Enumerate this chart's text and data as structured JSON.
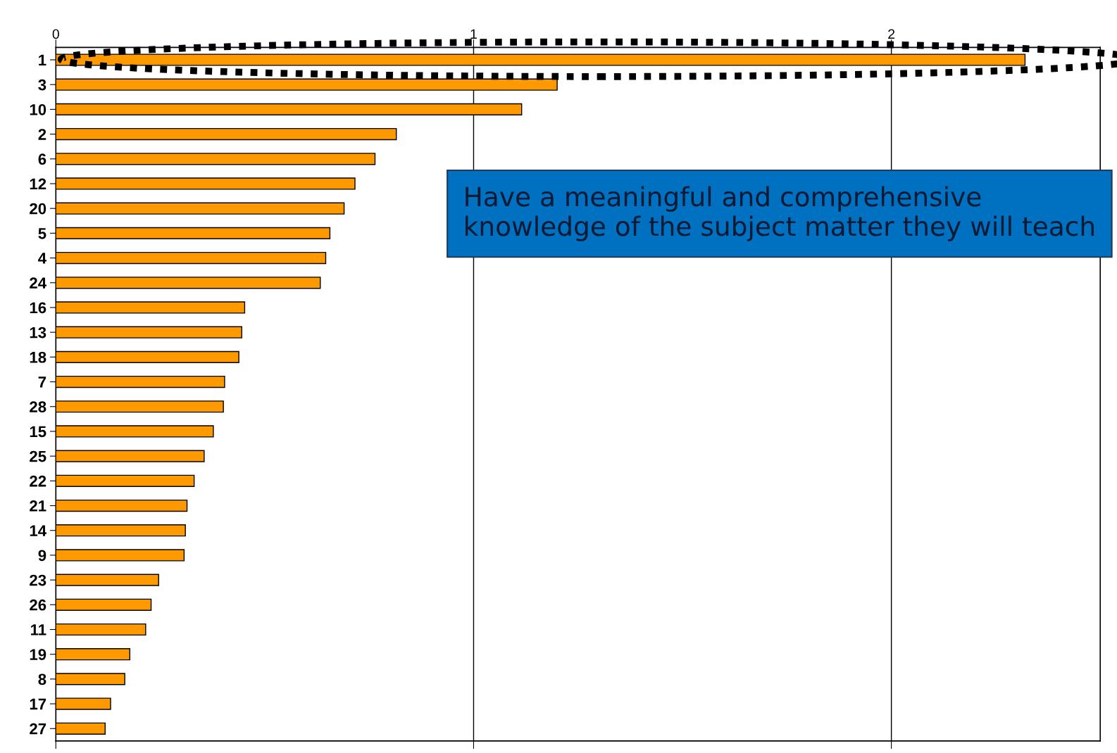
{
  "chart_data": {
    "type": "bar",
    "orientation": "horizontal",
    "categories": [
      "1",
      "3",
      "10",
      "2",
      "6",
      "12",
      "20",
      "5",
      "4",
      "24",
      "16",
      "13",
      "18",
      "7",
      "28",
      "15",
      "25",
      "22",
      "21",
      "14",
      "9",
      "23",
      "26",
      "11",
      "19",
      "8",
      "17",
      "27"
    ],
    "values": [
      2.32,
      1.2,
      1.115,
      0.815,
      0.764,
      0.716,
      0.69,
      0.656,
      0.646,
      0.633,
      0.452,
      0.445,
      0.438,
      0.404,
      0.401,
      0.377,
      0.355,
      0.331,
      0.314,
      0.31,
      0.307,
      0.246,
      0.228,
      0.215,
      0.177,
      0.165,
      0.131,
      0.118
    ],
    "color": "#ff9900",
    "xlim": [
      0,
      2.5
    ],
    "xticks": [
      0,
      1,
      2
    ],
    "grid": "x",
    "legend": false,
    "annotations": [
      "Have a meaningful and comprehensive knowledge of the subject matter they will teach"
    ]
  }
}
